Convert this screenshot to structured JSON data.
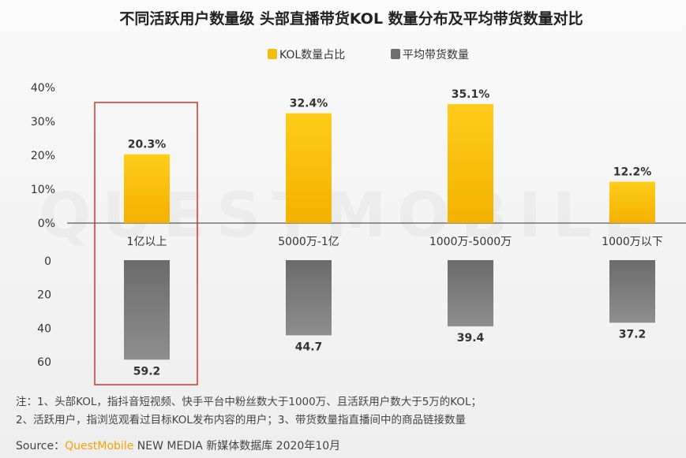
{
  "chart_data": [
    {
      "type": "bar",
      "title": "不同活跃用户数量级 头部直播带货KOL 数量分布及平均带货数量对比",
      "categories": [
        "1亿以上",
        "5000万-1亿",
        "1000万-5000万",
        "1000万以下"
      ],
      "series": [
        {
          "name": "KOL数量占比",
          "values": [
            20.3,
            32.4,
            35.1,
            12.2
          ],
          "labels": [
            "20.3%",
            "32.4%",
            "35.1%",
            "12.2%"
          ],
          "color": "#f5bb0d"
        },
        {
          "name": "平均带货数量",
          "values": [
            59.2,
            44.7,
            39.4,
            37.2
          ],
          "labels": [
            "59.2",
            "44.7",
            "39.4",
            "37.2"
          ],
          "color": "#7b7b7b"
        }
      ],
      "top_axis": {
        "ylim": [
          0,
          40
        ],
        "ticks": [
          "0%",
          "10%",
          "20%",
          "30%",
          "40%"
        ]
      },
      "bottom_axis": {
        "ylim": [
          0,
          60
        ],
        "inverted": true,
        "ticks": [
          "0",
          "20",
          "40",
          "60"
        ]
      },
      "highlight": {
        "category": "1亿以上",
        "color": "#d9322c"
      },
      "legend": "top-center",
      "grid": false
    }
  ],
  "watermark": "QUESTMOBILE",
  "notes": [
    "注：1、头部KOL，指抖音短视频、快手平台中粉丝数大于1000万、且活跃用户数大于5万的KOL；",
    "2、活跃用户，指浏览观看过目标KOL发布内容的用户；3、带货数量指直播间中的商品链接数量"
  ],
  "source": {
    "prefix": "Source：",
    "brand": "QuestMobile",
    "rest": " NEW MEDIA 新媒体数据库 2020年10月"
  }
}
